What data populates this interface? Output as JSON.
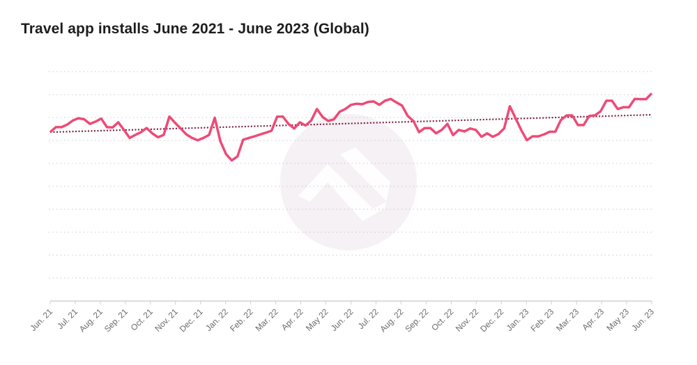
{
  "chart_data": {
    "type": "line",
    "title": "Travel app installs June 2021 - June 2023 (Global)",
    "xlabel": "",
    "ylabel": "",
    "x_range": [
      "2021-06",
      "2023-06"
    ],
    "x_sampling": "weekly, evenly spaced from start to end of x_range",
    "tick_labels": [
      "Jun. 21",
      "Jul. 21",
      "Aug. 21",
      "Sep. 21",
      "Oct. 21",
      "Nov. 21",
      "Dec. 21",
      "Jan. 22",
      "Feb. 22",
      "Mar. 22",
      "Apr. 22",
      "May 22",
      "Jun. 22",
      "Jul. 22",
      "Aug. 22",
      "Sep. 22",
      "Oct. 22",
      "Nov. 22",
      "Dec. 22",
      "Jan. 23",
      "Feb. 23",
      "Mar. 23",
      "Apr. 23",
      "May 23",
      "Jun. 23"
    ],
    "ylim": [
      0,
      10
    ],
    "y_tick_labels_shown": false,
    "grid": true,
    "series": [
      {
        "color": "#ee4a76",
        "values": [
          7.36,
          7.58,
          7.58,
          7.69,
          7.87,
          7.97,
          7.92,
          7.72,
          7.82,
          7.95,
          7.58,
          7.57,
          7.79,
          7.46,
          7.11,
          7.24,
          7.36,
          7.54,
          7.31,
          7.14,
          7.24,
          8.04,
          7.77,
          7.52,
          7.26,
          7.11,
          7.01,
          7.11,
          7.24,
          7.99,
          6.96,
          6.4,
          6.13,
          6.3,
          7.03,
          7.11,
          7.18,
          7.26,
          7.34,
          7.42,
          8.04,
          8.04,
          7.72,
          7.52,
          7.79,
          7.65,
          7.87,
          8.37,
          8.02,
          7.85,
          7.92,
          8.25,
          8.37,
          8.55,
          8.6,
          8.58,
          8.68,
          8.7,
          8.55,
          8.73,
          8.81,
          8.66,
          8.52,
          8.07,
          7.85,
          7.36,
          7.54,
          7.54,
          7.31,
          7.46,
          7.72,
          7.23,
          7.46,
          7.39,
          7.52,
          7.46,
          7.16,
          7.31,
          7.16,
          7.28,
          7.52,
          8.49,
          7.97,
          7.46,
          7.01,
          7.18,
          7.18,
          7.26,
          7.38,
          7.38,
          7.89,
          8.09,
          8.09,
          7.67,
          7.67,
          8.07,
          8.09,
          8.27,
          8.73,
          8.73,
          8.37,
          8.45,
          8.45,
          8.81,
          8.8,
          8.8,
          9.05
        ]
      }
    ],
    "trendline": {
      "style": "dotted",
      "color": "#7a1f45",
      "start": 7.36,
      "end": 8.12
    },
    "watermark": "circle-logo"
  },
  "colors": {
    "grid": "#c8c8c8",
    "axis": "#d0d0d0",
    "watermark": "#f6f1f4"
  }
}
